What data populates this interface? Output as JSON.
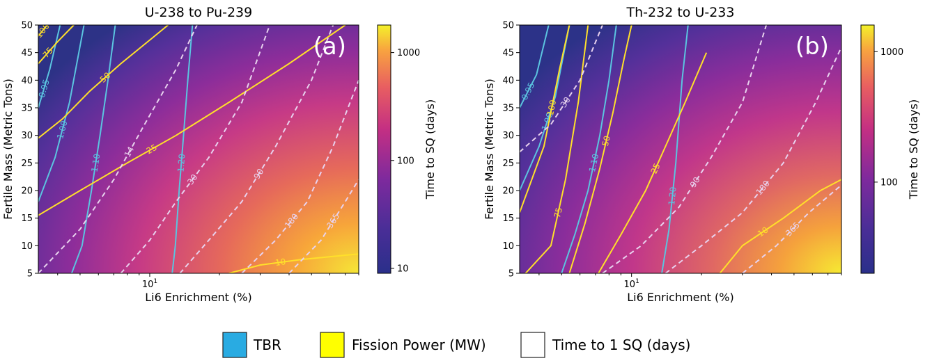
{
  "chart_data": [
    {
      "type": "heatmap",
      "panel_label": "(a)",
      "title": "U-238 to Pu-239",
      "xlabel": "Li6 Enrichment (%)",
      "ylabel": "Fertile Mass (Metric Tons)",
      "x_scale": "log",
      "xlim": [
        3.3,
        80
      ],
      "ylim": [
        5,
        50
      ],
      "x_ticks": [
        {
          "value": 10,
          "label": "10"
        }
      ],
      "y_ticks": [
        5,
        10,
        15,
        20,
        25,
        30,
        35,
        40,
        45,
        50
      ],
      "colorbar": {
        "label": "Time to SQ (days)",
        "scale": "log",
        "range": [
          9,
          1800
        ],
        "ticks": [
          {
            "value": 10,
            "label": "10"
          },
          {
            "value": 100,
            "label": "100"
          },
          {
            "value": 1000,
            "label": "1000"
          }
        ],
        "colormap": "plasma"
      },
      "contours": {
        "tbr": [
          {
            "level": "0.95",
            "points": [
              [
                3.3,
                35
              ],
              [
                3.7,
                42
              ],
              [
                4.1,
                50
              ]
            ]
          },
          {
            "level": "1.00",
            "points": [
              [
                3.3,
                18
              ],
              [
                3.9,
                26
              ],
              [
                4.5,
                36
              ],
              [
                5.2,
                50
              ]
            ]
          },
          {
            "level": "1.10",
            "points": [
              [
                4.6,
                5
              ],
              [
                5.1,
                10
              ],
              [
                5.6,
                20
              ],
              [
                6.1,
                30
              ],
              [
                6.6,
                40
              ],
              [
                7.1,
                50
              ]
            ]
          },
          {
            "level": "1.20",
            "points": [
              [
                12.5,
                5
              ],
              [
                12.9,
                10
              ],
              [
                13.4,
                20
              ],
              [
                14.0,
                30
              ],
              [
                14.6,
                40
              ],
              [
                15.3,
                50
              ]
            ]
          }
        ],
        "fission_power": [
          {
            "level": "10",
            "points": [
              [
                22,
                5
              ],
              [
                30,
                6.5
              ],
              [
                45,
                7.5
              ],
              [
                80,
                8.5
              ]
            ]
          },
          {
            "level": "25",
            "points": [
              [
                3.3,
                15.5
              ],
              [
                5,
                20
              ],
              [
                8,
                25
              ],
              [
                13,
                30
              ],
              [
                22,
                36
              ],
              [
                40,
                43
              ],
              [
                70,
                50
              ]
            ]
          },
          {
            "level": "50",
            "points": [
              [
                3.3,
                29.5
              ],
              [
                4.2,
                33
              ],
              [
                5.5,
                38
              ],
              [
                7.5,
                43
              ],
              [
                10.5,
                48
              ],
              [
                12,
                50
              ]
            ]
          },
          {
            "level": "75",
            "points": [
              [
                3.3,
                43
              ],
              [
                4,
                47
              ],
              [
                4.7,
                50
              ]
            ]
          },
          {
            "level": "100",
            "points": [
              [
                3.3,
                48
              ],
              [
                3.6,
                50
              ]
            ]
          }
        ],
        "time_to_sq": [
          {
            "level": "14",
            "points": [
              [
                3.3,
                5
              ],
              [
                5,
                13
              ],
              [
                7,
                22
              ],
              [
                9.5,
                32
              ],
              [
                13,
                42
              ],
              [
                16,
                50
              ]
            ]
          },
          {
            "level": "30",
            "points": [
              [
                7.5,
                5
              ],
              [
                10,
                11
              ],
              [
                13,
                18
              ],
              [
                18,
                26
              ],
              [
                25,
                36
              ],
              [
                33,
                50
              ]
            ]
          },
          {
            "level": "90",
            "points": [
              [
                13.5,
                5
              ],
              [
                18,
                11
              ],
              [
                25,
                18
              ],
              [
                35,
                28
              ],
              [
                50,
                40
              ],
              [
                62,
                50
              ]
            ]
          },
          {
            "level": "180",
            "points": [
              [
                25,
                5
              ],
              [
                35,
                11
              ],
              [
                48,
                18
              ],
              [
                62,
                28
              ],
              [
                80,
                40
              ]
            ]
          },
          {
            "level": "365",
            "points": [
              [
                40,
                5
              ],
              [
                55,
                11
              ],
              [
                70,
                18
              ],
              [
                80,
                22
              ]
            ]
          }
        ]
      }
    },
    {
      "type": "heatmap",
      "panel_label": "(b)",
      "title": "Th-232 to U-233",
      "xlabel": "Li6 Enrichment (%)",
      "ylabel": "Fertile Mass (Metric Tons)",
      "x_scale": "log",
      "xlim": [
        3.3,
        80
      ],
      "ylim": [
        5,
        50
      ],
      "x_ticks": [
        {
          "value": 10,
          "label": "10"
        }
      ],
      "y_ticks": [
        5,
        10,
        15,
        20,
        25,
        30,
        35,
        40,
        45,
        50
      ],
      "colorbar": {
        "label": "Time to SQ (days)",
        "scale": "log",
        "range": [
          20,
          1600
        ],
        "ticks": [
          {
            "value": 100,
            "label": "100"
          },
          {
            "value": 1000,
            "label": "1000"
          }
        ],
        "colormap": "plasma"
      },
      "contours": {
        "tbr": [
          {
            "level": "0.95",
            "points": [
              [
                3.3,
                35
              ],
              [
                3.9,
                41
              ],
              [
                4.4,
                50
              ]
            ]
          },
          {
            "level": "1.00",
            "points": [
              [
                3.3,
                20
              ],
              [
                4.0,
                28
              ],
              [
                4.7,
                37
              ],
              [
                5.4,
                50
              ]
            ]
          },
          {
            "level": "1.10",
            "points": [
              [
                5.0,
                5
              ],
              [
                5.7,
                12
              ],
              [
                6.5,
                20
              ],
              [
                7.3,
                30
              ],
              [
                8.0,
                40
              ],
              [
                8.6,
                50
              ]
            ]
          },
          {
            "level": "1.20",
            "points": [
              [
                13.5,
                5
              ],
              [
                14.5,
                13
              ],
              [
                15.5,
                25
              ],
              [
                16.5,
                40
              ],
              [
                17.5,
                50
              ]
            ]
          }
        ],
        "fission_power": [
          {
            "level": "10",
            "points": [
              [
                24,
                5
              ],
              [
                30,
                10
              ],
              [
                45,
                15
              ],
              [
                65,
                20
              ],
              [
                80,
                22
              ]
            ]
          },
          {
            "level": "25",
            "points": [
              [
                7.2,
                5
              ],
              [
                9,
                12
              ],
              [
                11.5,
                20
              ],
              [
                14,
                28
              ],
              [
                17,
                36
              ],
              [
                21,
                45
              ]
            ]
          },
          {
            "level": "50",
            "points": [
              [
                5.4,
                5
              ],
              [
                6.3,
                14
              ],
              [
                7.3,
                24
              ],
              [
                8.3,
                34
              ],
              [
                9.3,
                44
              ],
              [
                10,
                50
              ]
            ]
          },
          {
            "level": "75",
            "points": [
              [
                3.5,
                5
              ],
              [
                4.5,
                10
              ],
              [
                5.2,
                22
              ],
              [
                5.9,
                36
              ],
              [
                6.5,
                50
              ]
            ]
          },
          {
            "level": "100",
            "points": [
              [
                3.3,
                16
              ],
              [
                4.2,
                28
              ],
              [
                4.9,
                42
              ],
              [
                5.4,
                50
              ]
            ]
          }
        ],
        "time_to_sq": [
          {
            "level": "30",
            "points": [
              [
                3.3,
                27
              ],
              [
                4.5,
                32
              ],
              [
                6.0,
                40
              ],
              [
                7.5,
                50
              ]
            ]
          },
          {
            "level": "90",
            "points": [
              [
                7.5,
                5
              ],
              [
                11,
                10
              ],
              [
                16,
                17
              ],
              [
                22,
                26
              ],
              [
                30,
                36
              ],
              [
                38,
                50
              ]
            ]
          },
          {
            "level": "180",
            "points": [
              [
                14,
                5
              ],
              [
                20,
                10
              ],
              [
                30,
                16
              ],
              [
                45,
                25
              ],
              [
                62,
                36
              ],
              [
                80,
                46
              ]
            ]
          },
          {
            "level": "365",
            "points": [
              [
                30,
                5
              ],
              [
                42,
                10
              ],
              [
                58,
                16
              ],
              [
                80,
                21
              ]
            ]
          }
        ]
      }
    }
  ],
  "legend": {
    "items": [
      {
        "label": "TBR",
        "color": "#29abe2"
      },
      {
        "label": "Fission Power (MW)",
        "color": "#ffff00"
      },
      {
        "label": "Time to 1 SQ (days)",
        "color": "#ffffff"
      }
    ]
  },
  "colors": {
    "tbr_line": "#5bc4e0",
    "fission_line": "#ffe02a",
    "time_line": "#e8d2ee"
  }
}
